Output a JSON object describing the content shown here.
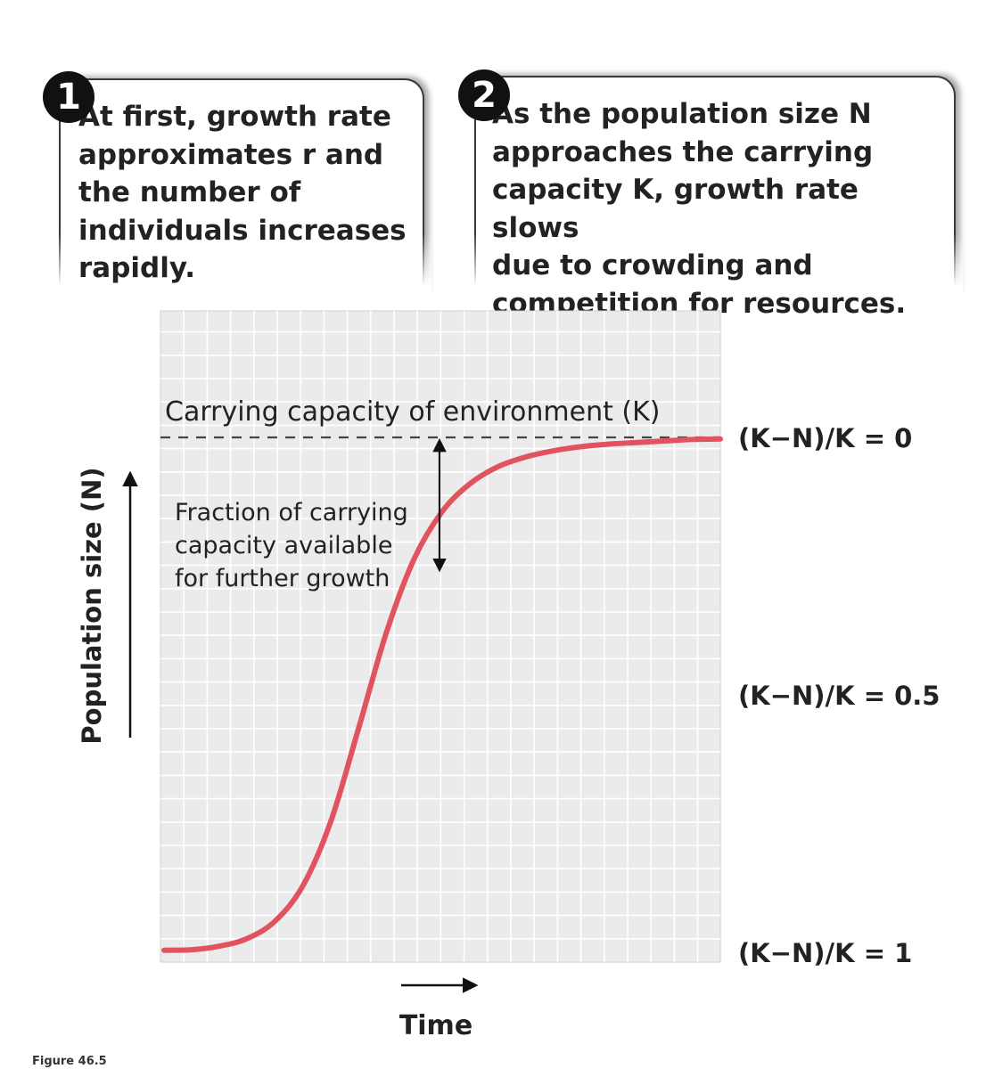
{
  "callouts": [
    {
      "number": "1",
      "text": "At first, growth rate\napproximates r and\nthe number of\nindividuals increases\nrapidly."
    },
    {
      "number": "2",
      "text": "As the population size N\napproaches the carrying\ncapacity K, growth rate slows\ndue to crowding and\ncompetition for resources."
    }
  ],
  "figure_caption": "Figure 46.5",
  "colors": {
    "plot_background": "#ebebeb",
    "grid": "#ffffff",
    "curve": "#e0535f",
    "text": "#222222"
  },
  "chart_data": {
    "type": "line",
    "title": "",
    "xlabel": "Time",
    "ylabel": "Population size (N)",
    "xlim": [
      0,
      1
    ],
    "ylim": [
      0,
      1.2
    ],
    "grid": true,
    "legend": "none",
    "series": [
      {
        "x": [
          0,
          0.05,
          0.1,
          0.15,
          0.2,
          0.25,
          0.3,
          0.35,
          0.4,
          0.45,
          0.5,
          0.55,
          0.6,
          0.65,
          0.7,
          0.75,
          0.8,
          0.85,
          0.9,
          0.95,
          1.0
        ],
        "y": [
          0.004,
          0.005,
          0.012,
          0.027,
          0.061,
          0.13,
          0.255,
          0.436,
          0.622,
          0.765,
          0.856,
          0.91,
          0.943,
          0.962,
          0.974,
          0.982,
          0.987,
          0.99,
          0.993,
          0.996,
          0.997
        ]
      }
    ],
    "reference_line": {
      "y": 1.0,
      "label": "Carrying capacity of environment (K)",
      "style": "dashed"
    },
    "right_labels": [
      {
        "y": 1.0,
        "text": "(K−N)/K = 0"
      },
      {
        "y": 0.5,
        "text": "(K−N)/K = 0.5"
      },
      {
        "y": 0.0,
        "text": "(K−N)/K = 1"
      }
    ],
    "annotation": {
      "x": 0.5,
      "y_from": 1.0,
      "y_to": 0.74,
      "text": [
        "Fraction of carrying",
        "capacity available",
        "for further growth"
      ]
    }
  }
}
